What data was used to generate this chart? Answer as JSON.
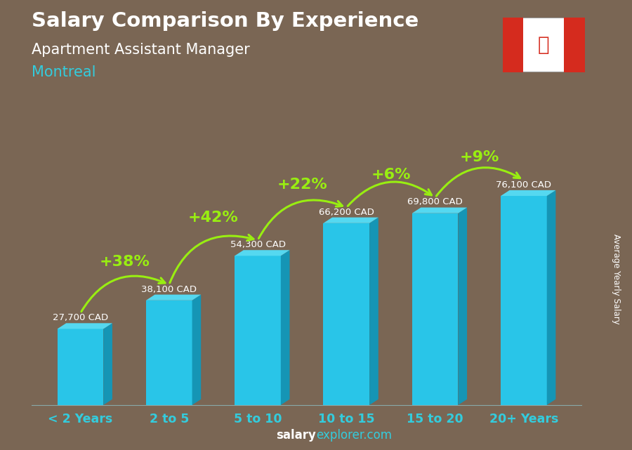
{
  "title_line1": "Salary Comparison By Experience",
  "title_line2": "Apartment Assistant Manager",
  "title_line3": "Montreal",
  "categories": [
    "< 2 Years",
    "2 to 5",
    "5 to 10",
    "10 to 15",
    "15 to 20",
    "20+ Years"
  ],
  "values": [
    27700,
    38100,
    54300,
    66200,
    69800,
    76100
  ],
  "labels": [
    "27,700 CAD",
    "38,100 CAD",
    "54,300 CAD",
    "66,200 CAD",
    "69,800 CAD",
    "76,100 CAD"
  ],
  "pct_changes": [
    "+38%",
    "+42%",
    "+22%",
    "+6%",
    "+9%"
  ],
  "bar_color_main": "#29c5e8",
  "bar_color_side": "#1595b5",
  "bar_color_top": "#55d8f0",
  "bg_color": "#7a6654",
  "ylabel": "Average Yearly Salary",
  "footer_bold": "salary",
  "footer_normal": "explorer.com",
  "pct_color": "#99ee11",
  "label_color": "#ffffff",
  "title1_color": "#ffffff",
  "title2_color": "#ffffff",
  "title3_color": "#33ccdd",
  "xtick_color": "#33ccdd",
  "ylim": [
    0,
    95000
  ],
  "bar_width": 0.52
}
